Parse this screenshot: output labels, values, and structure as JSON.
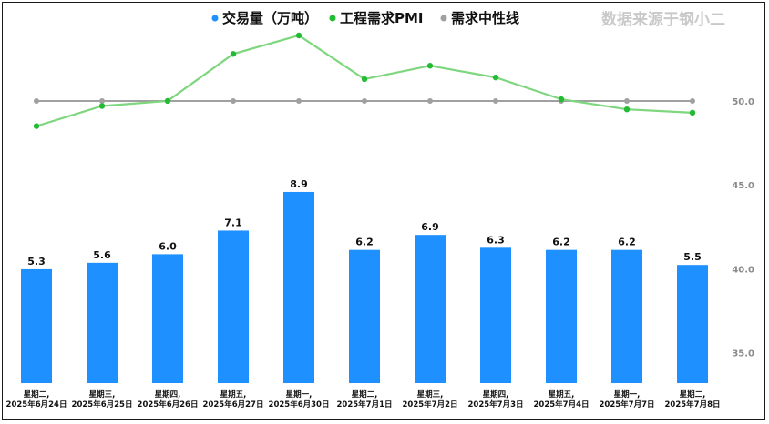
{
  "source_note": "数据来源于钢小二",
  "chart_data": {
    "type": "bar+line",
    "categories": [
      [
        "星期二,",
        "2025年6月24日"
      ],
      [
        "星期三,",
        "2025年6月25日"
      ],
      [
        "星期四,",
        "2025年6月26日"
      ],
      [
        "星期五,",
        "2025年6月27日"
      ],
      [
        "星期一,",
        "2025年6月30日"
      ],
      [
        "星期二,",
        "2025年7月1日"
      ],
      [
        "星期三,",
        "2025年7月2日"
      ],
      [
        "星期四,",
        "2025年7月3日"
      ],
      [
        "星期五,",
        "2025年7月4日"
      ],
      [
        "星期一,",
        "2025年7月7日"
      ],
      [
        "星期二,",
        "2025年7月8日"
      ]
    ],
    "series": [
      {
        "name": "交易量（万吨）",
        "type": "bar",
        "color": "#1e90ff",
        "values": [
          5.3,
          5.6,
          6.0,
          7.1,
          8.9,
          6.2,
          6.9,
          6.3,
          6.2,
          6.2,
          5.5
        ],
        "labels": [
          "5.3",
          "5.6",
          "6.0",
          "7.1",
          "8.9",
          "6.2",
          "6.9",
          "6.3",
          "6.2",
          "6.2",
          "5.5"
        ]
      },
      {
        "name": "工程需求PMI",
        "type": "line",
        "color": "#7ed67e",
        "marker_color": "#22bb33",
        "values": [
          48.5,
          49.7,
          50.0,
          52.8,
          53.9,
          51.3,
          52.1,
          51.4,
          50.1,
          49.5,
          49.3
        ]
      },
      {
        "name": "需求中性线",
        "type": "line",
        "color": "#a0a0a0",
        "values": [
          50,
          50,
          50,
          50,
          50,
          50,
          50,
          50,
          50,
          50,
          50
        ]
      }
    ],
    "y_right": {
      "ticks": [
        "50.0",
        "45.0",
        "40.0",
        "35.0"
      ],
      "values": [
        50,
        45,
        40,
        35
      ],
      "range": [
        33,
        54.5
      ]
    },
    "legend_position": "top-center",
    "grid": false
  }
}
